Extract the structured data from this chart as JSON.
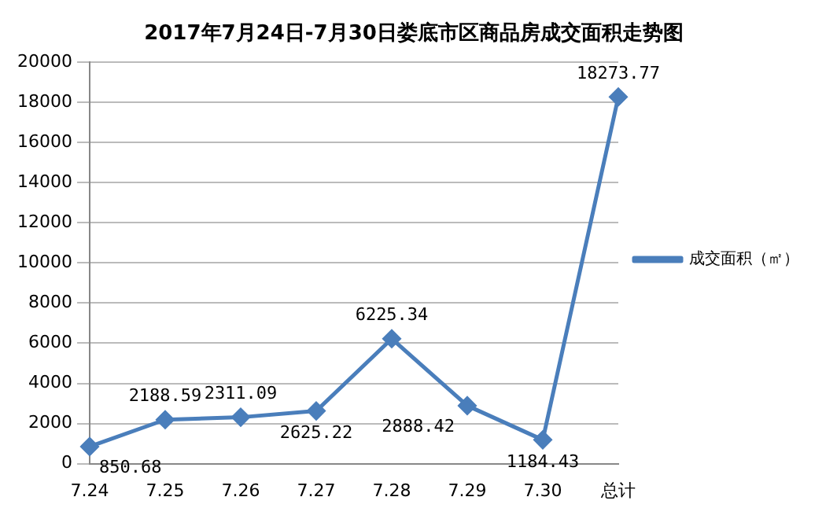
{
  "chart_data": {
    "type": "line",
    "title": "2017年7月24日-7月30日娄底市区商品房成交面积走势图",
    "categories": [
      "7.24",
      "7.25",
      "7.26",
      "7.27",
      "7.28",
      "7.29",
      "7.30",
      "总计"
    ],
    "series": [
      {
        "name": "成交面积（㎡）",
        "color": "#4a7ebb",
        "values": [
          850.68,
          2188.59,
          2311.09,
          2625.22,
          6225.34,
          2888.42,
          1184.43,
          18273.77
        ]
      }
    ],
    "ylim": [
      0,
      20000
    ],
    "yticks": [
      0,
      2000,
      4000,
      6000,
      8000,
      10000,
      12000,
      14000,
      16000,
      18000,
      20000
    ],
    "grid": "y",
    "legend": "right",
    "marker": "diamond",
    "line_style": "solid",
    "data_labels": true
  }
}
